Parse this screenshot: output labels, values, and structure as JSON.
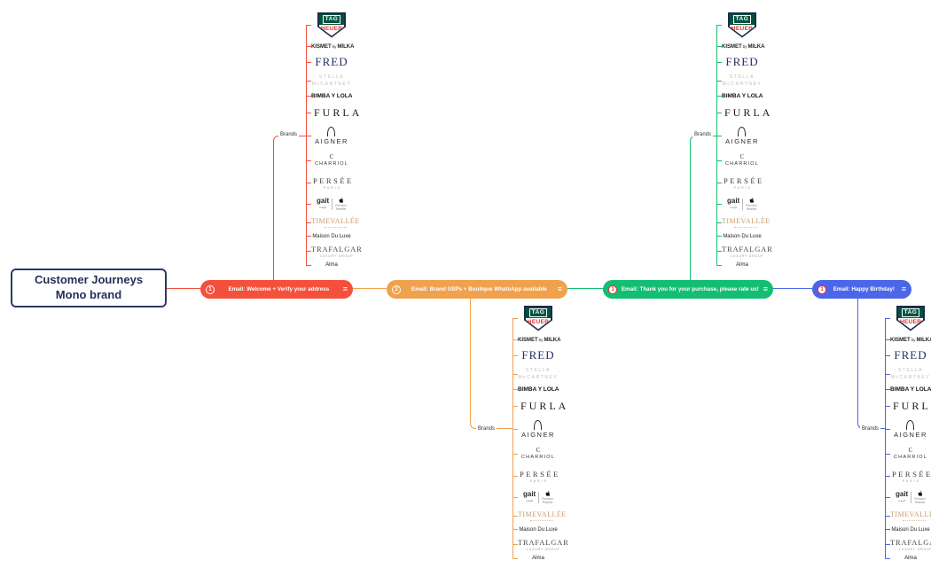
{
  "root": {
    "title_line1": "Customer Journeys",
    "title_line2": "Mono brand",
    "border_color": "#2b3a67"
  },
  "branch_label": "Brands",
  "journey_nodes": [
    {
      "number": "1",
      "number_style": "outline",
      "label": "Email: Welcome + Verify your address",
      "color": "#f4503c"
    },
    {
      "number": "2",
      "number_style": "outline",
      "label": "Email: Brand USPs + Boutique WhatsApp available",
      "color": "#f0a14e"
    },
    {
      "number": "1",
      "number_style": "badge",
      "label": "Email: Thank you for your purchase, please rate us!",
      "color": "#13be72"
    },
    {
      "number": "1",
      "number_style": "badge",
      "label": "Email: Happy Birthday!",
      "color": "#4b66e8"
    }
  ],
  "menu_icon": "≡",
  "brands": [
    {
      "id": "tag-heuer",
      "name": "TAG Heuer",
      "text_top": "TAG",
      "text_bottom": "HEUER",
      "shield_green": "#015340",
      "shield_red": "#e8332a",
      "shield_border": "#1c2b4a"
    },
    {
      "id": "kismet",
      "name": "KISMET by MILKA",
      "text_a": "KISMET",
      "text_b": "by",
      "text_c": "MILKA"
    },
    {
      "id": "fred",
      "name": "FRED",
      "text": "FRED"
    },
    {
      "id": "stella-mccartney",
      "name": "STELLA McCARTNEY",
      "line1": "STELLA",
      "line2": "McCARTNEY"
    },
    {
      "id": "bimba-y-lola",
      "name": "BIMBA Y LOLA",
      "text": "BIMBA Y LOLA"
    },
    {
      "id": "furla",
      "name": "FURLA",
      "text": "FURLA"
    },
    {
      "id": "aigner",
      "name": "AIGNER",
      "text": "AIGNER"
    },
    {
      "id": "charriol",
      "name": "CHARRIOL",
      "mark": "C",
      "text": "CHARRIOL"
    },
    {
      "id": "persee",
      "name": "PERSÉE PARIS",
      "line1": "PERSÉE",
      "line2": "PARIS"
    },
    {
      "id": "gait-apple",
      "name": "Gait – Apple Premium Reseller",
      "text": "gait",
      "subtext": "جيت",
      "badge_line1": "Premium",
      "badge_line2": "Reseller"
    },
    {
      "id": "timevallee",
      "name": "TIMEVALLÉE",
      "text": "TIMEVALLÉE",
      "gold": "#c49a6c"
    },
    {
      "id": "maison-du-luxe",
      "name": "Maison Du Luxe",
      "text": "Maison Du Luxe"
    },
    {
      "id": "trafalgar",
      "name": "TRAFALGAR LUXURY GROUP",
      "line1": "TRAFALGAR",
      "line2": "LUXURY GROUP"
    },
    {
      "id": "alma",
      "name": "Alma",
      "text": "Alma"
    }
  ]
}
